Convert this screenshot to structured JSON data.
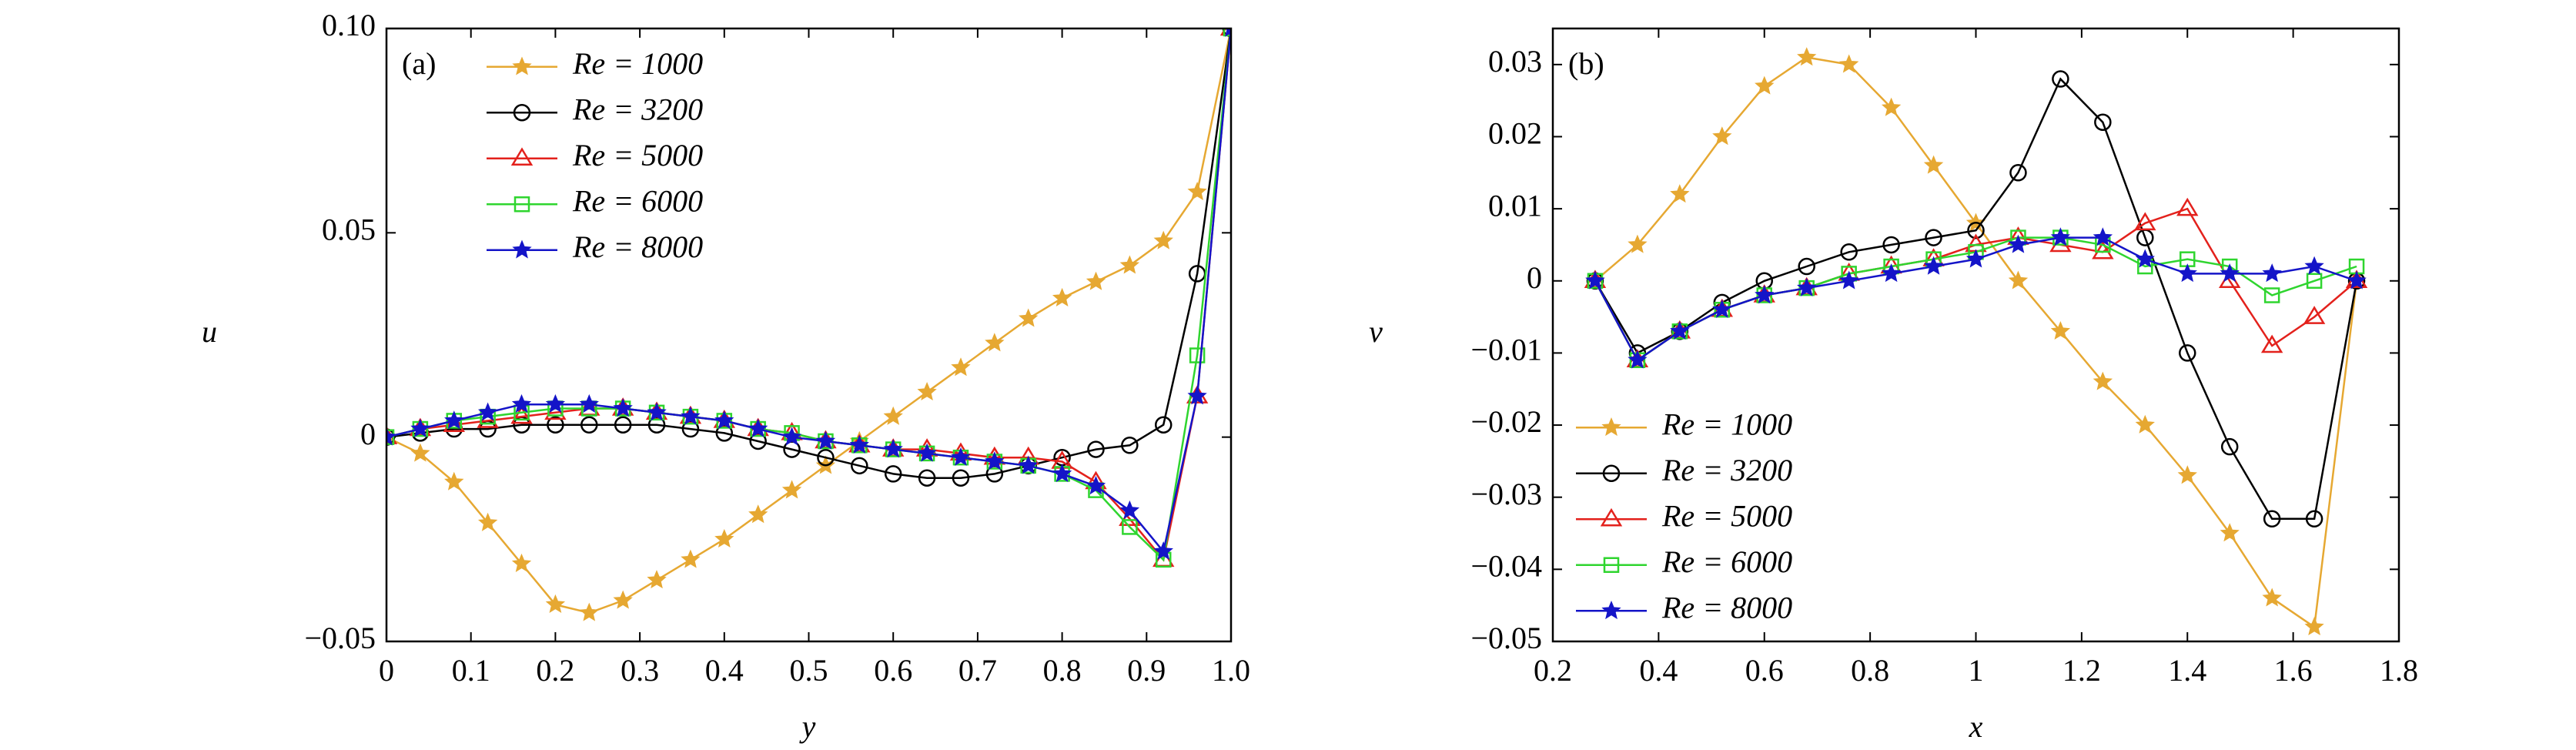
{
  "chart_data": [
    {
      "type": "line",
      "panel_label": "(a)",
      "xlabel": "y",
      "ylabel": "u",
      "x": [
        0,
        0.04,
        0.08,
        0.12,
        0.16,
        0.2,
        0.24,
        0.28,
        0.32,
        0.36,
        0.4,
        0.44,
        0.48,
        0.52,
        0.56,
        0.6,
        0.64,
        0.68,
        0.72,
        0.76,
        0.8,
        0.84,
        0.88,
        0.92,
        0.96,
        1.0
      ],
      "series": [
        {
          "name": "Re = 1000",
          "color": "#e6a832",
          "marker": "star",
          "values": [
            0,
            -0.004,
            -0.011,
            -0.021,
            -0.031,
            -0.041,
            -0.043,
            -0.04,
            -0.035,
            -0.03,
            -0.025,
            -0.019,
            -0.013,
            -0.007,
            -0.001,
            0.005,
            0.011,
            0.017,
            0.023,
            0.029,
            0.034,
            0.038,
            0.042,
            0.048,
            0.06,
            0.1
          ]
        },
        {
          "name": "Re = 3200",
          "color": "#000000",
          "marker": "circle",
          "values": [
            0,
            0.001,
            0.002,
            0.002,
            0.003,
            0.003,
            0.003,
            0.003,
            0.003,
            0.002,
            0.001,
            -0.001,
            -0.003,
            -0.005,
            -0.007,
            -0.009,
            -0.01,
            -0.01,
            -0.009,
            -0.007,
            -0.005,
            -0.003,
            -0.002,
            0.003,
            0.04,
            0.1
          ]
        },
        {
          "name": "Re = 5000",
          "color": "#e3211c",
          "marker": "triangle",
          "values": [
            0,
            0.002,
            0.003,
            0.004,
            0.005,
            0.006,
            0.007,
            0.007,
            0.006,
            0.005,
            0.004,
            0.002,
            0.001,
            -0.001,
            -0.002,
            -0.003,
            -0.003,
            -0.004,
            -0.005,
            -0.005,
            -0.006,
            -0.011,
            -0.02,
            -0.03,
            0.01,
            0.1
          ]
        },
        {
          "name": "Re = 6000",
          "color": "#2fd52f",
          "marker": "square",
          "values": [
            0,
            0.002,
            0.004,
            0.005,
            0.006,
            0.007,
            0.007,
            0.007,
            0.006,
            0.005,
            0.004,
            0.002,
            0.001,
            -0.001,
            -0.002,
            -0.003,
            -0.004,
            -0.005,
            -0.006,
            -0.007,
            -0.009,
            -0.013,
            -0.022,
            -0.03,
            0.02,
            0.1
          ]
        },
        {
          "name": "Re = 8000",
          "color": "#1414c8",
          "marker": "star",
          "values": [
            0,
            0.002,
            0.004,
            0.006,
            0.008,
            0.008,
            0.008,
            0.007,
            0.006,
            0.005,
            0.004,
            0.002,
            0,
            -0.001,
            -0.002,
            -0.003,
            -0.004,
            -0.005,
            -0.006,
            -0.007,
            -0.009,
            -0.012,
            -0.018,
            -0.028,
            0.01,
            0.1
          ]
        }
      ],
      "xlim": [
        0,
        1
      ],
      "xticks": [
        0,
        0.1,
        0.2,
        0.3,
        0.4,
        0.5,
        0.6,
        0.7,
        0.8,
        0.9,
        {
          "value": 1.0,
          "label": "1.0"
        }
      ],
      "ylim": [
        -0.05,
        0.1
      ],
      "yticks": [
        {
          "value": -0.05,
          "label": "−0.05"
        },
        0,
        0.05,
        {
          "value": 0.1,
          "label": "0.10"
        }
      ],
      "grid": false,
      "legend": "upper left"
    },
    {
      "type": "line",
      "panel_label": "(b)",
      "xlabel": "x",
      "ylabel": "v",
      "x": [
        0.28,
        0.36,
        0.44,
        0.52,
        0.6,
        0.68,
        0.76,
        0.84,
        0.92,
        1.0,
        1.08,
        1.16,
        1.24,
        1.32,
        1.4,
        1.48,
        1.56,
        1.64,
        1.72
      ],
      "series": [
        {
          "name": "Re = 1000",
          "color": "#e6a832",
          "marker": "star",
          "values": [
            0,
            0.005,
            0.012,
            0.02,
            0.027,
            0.031,
            0.03,
            0.024,
            0.016,
            0.008,
            0,
            -0.007,
            -0.014,
            -0.02,
            -0.027,
            -0.035,
            -0.044,
            -0.048,
            0
          ]
        },
        {
          "name": "Re = 3200",
          "color": "#000000",
          "marker": "circle",
          "values": [
            0,
            -0.01,
            -0.007,
            -0.003,
            0,
            0.002,
            0.004,
            0.005,
            0.006,
            0.007,
            0.015,
            0.028,
            0.022,
            0.006,
            -0.01,
            -0.023,
            -0.033,
            -0.033,
            0
          ]
        },
        {
          "name": "Re = 5000",
          "color": "#e3211c",
          "marker": "triangle",
          "values": [
            0,
            -0.011,
            -0.007,
            -0.004,
            -0.002,
            -0.001,
            0.001,
            0.002,
            0.003,
            0.005,
            0.006,
            0.005,
            0.004,
            0.008,
            0.01,
            0,
            -0.009,
            -0.005,
            0
          ]
        },
        {
          "name": "Re = 6000",
          "color": "#2fd52f",
          "marker": "square",
          "values": [
            0,
            -0.011,
            -0.007,
            -0.004,
            -0.002,
            -0.001,
            0.001,
            0.002,
            0.003,
            0.004,
            0.006,
            0.006,
            0.005,
            0.002,
            0.003,
            0.002,
            -0.002,
            0,
            0.002
          ]
        },
        {
          "name": "Re = 8000",
          "color": "#1414c8",
          "marker": "star",
          "values": [
            0,
            -0.011,
            -0.007,
            -0.004,
            -0.002,
            -0.001,
            0,
            0.001,
            0.002,
            0.003,
            0.005,
            0.006,
            0.006,
            0.003,
            0.001,
            0.001,
            0.001,
            0.002,
            0
          ]
        }
      ],
      "xlim": [
        0.2,
        1.8
      ],
      "xticks": [
        0.2,
        0.4,
        0.6,
        0.8,
        1,
        1.2,
        1.4,
        1.6,
        1.8
      ],
      "ylim": [
        -0.05,
        0.035
      ],
      "yticks": [
        {
          "value": -0.05,
          "label": "−0.05"
        },
        {
          "value": -0.04,
          "label": "−0.04"
        },
        {
          "value": -0.03,
          "label": "−0.03"
        },
        {
          "value": -0.02,
          "label": "−0.02"
        },
        {
          "value": -0.01,
          "label": "−0.01"
        },
        0,
        0.01,
        0.02,
        0.03
      ],
      "grid": false,
      "legend": "lower left"
    }
  ]
}
